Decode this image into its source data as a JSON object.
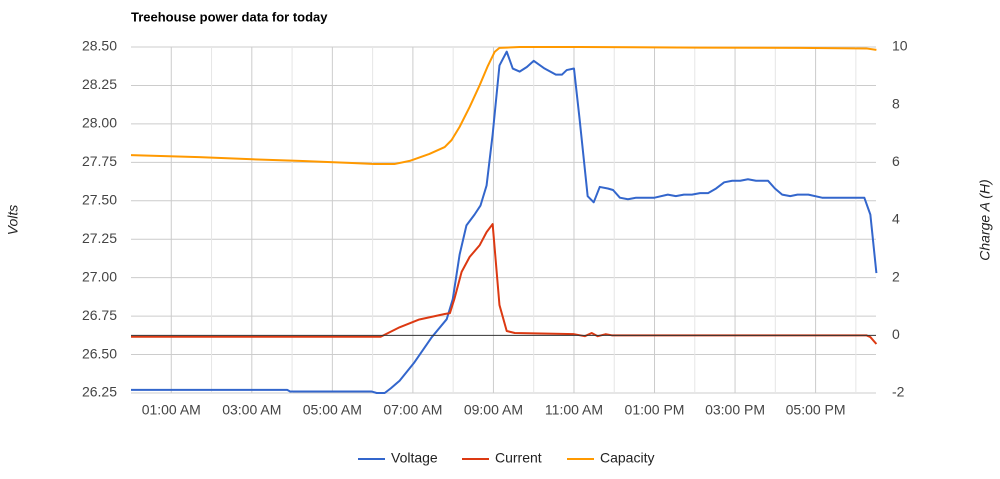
{
  "chart_data": {
    "type": "line",
    "title": "Treehouse power data for today",
    "y_label": "Volts",
    "y2_label": "Charge A (H)",
    "xlim": [
      0,
      18.5
    ],
    "xticks": [
      {
        "value": 1,
        "label": "01:00 AM"
      },
      {
        "value": 3,
        "label": "03:00 AM"
      },
      {
        "value": 5,
        "label": "05:00 AM"
      },
      {
        "value": 7,
        "label": "07:00 AM"
      },
      {
        "value": 9,
        "label": "09:00 AM"
      },
      {
        "value": 11,
        "label": "11:00 AM"
      },
      {
        "value": 13,
        "label": "01:00 PM"
      },
      {
        "value": 15,
        "label": "03:00 PM"
      },
      {
        "value": 17,
        "label": "05:00 PM"
      }
    ],
    "x_minor_ticks": [
      2,
      4,
      6,
      8,
      10,
      12,
      14,
      16,
      18
    ],
    "ylim": [
      26.25,
      28.5
    ],
    "yticks": [
      26.25,
      {
        "value": 26.5,
        "label": "26.50"
      },
      26.75,
      {
        "value": 27,
        "label": "27.00"
      },
      27.25,
      {
        "value": 27.5,
        "label": "27.50"
      },
      27.75,
      {
        "value": 28,
        "label": "28.00"
      },
      28.25,
      {
        "value": 28.5,
        "label": "28.50"
      }
    ],
    "y2lim": [
      -2,
      10
    ],
    "y2ticks": [
      -2,
      0,
      2,
      4,
      6,
      8,
      10
    ],
    "grid": true,
    "legend": "bottom",
    "series": [
      {
        "name": "Voltage",
        "color": "#3366cc",
        "axis": "y",
        "x": [
          0,
          3.88,
          3.95,
          5.97,
          6.1,
          6.3,
          6.45,
          6.67,
          7.04,
          7.46,
          7.84,
          7.99,
          8.16,
          8.33,
          8.53,
          8.68,
          8.83,
          8.98,
          9.15,
          9.33,
          9.48,
          9.65,
          9.83,
          10.0,
          10.27,
          10.55,
          10.7,
          10.82,
          11.0,
          11.14,
          11.34,
          11.49,
          11.64,
          11.84,
          11.97,
          12.14,
          12.34,
          12.54,
          13.0,
          13.33,
          13.53,
          13.73,
          13.93,
          14.13,
          14.33,
          14.53,
          14.73,
          14.93,
          15.13,
          15.32,
          15.52,
          15.82,
          15.99,
          16.17,
          16.37,
          16.55,
          16.82,
          17.16,
          18.21,
          18.36,
          18.51
        ],
        "values": [
          26.27,
          26.27,
          26.26,
          26.26,
          26.25,
          26.25,
          26.28,
          26.33,
          26.45,
          26.61,
          26.73,
          26.86,
          27.15,
          27.34,
          27.41,
          27.47,
          27.6,
          27.93,
          28.38,
          28.47,
          28.36,
          28.34,
          28.37,
          28.41,
          28.36,
          28.32,
          28.32,
          28.35,
          28.36,
          28.03,
          27.53,
          27.49,
          27.59,
          27.58,
          27.57,
          27.52,
          27.51,
          27.52,
          27.52,
          27.54,
          27.53,
          27.54,
          27.54,
          27.55,
          27.55,
          27.58,
          27.62,
          27.63,
          27.63,
          27.64,
          27.63,
          27.63,
          27.58,
          27.54,
          27.53,
          27.54,
          27.54,
          27.52,
          27.52,
          27.41,
          27.03
        ]
      },
      {
        "name": "Current",
        "color": "#dc3912",
        "axis": "y2",
        "x": [
          0,
          6.2,
          6.67,
          7.16,
          7.79,
          7.92,
          8.03,
          8.21,
          8.41,
          8.66,
          8.83,
          8.98,
          9.15,
          9.33,
          9.53,
          11.0,
          11.27,
          11.44,
          11.59,
          11.79,
          11.94,
          18.26,
          18.36,
          18.51
        ],
        "values": [
          -0.05,
          -0.05,
          0.28,
          0.55,
          0.74,
          0.77,
          1.26,
          2.2,
          2.72,
          3.13,
          3.58,
          3.86,
          1.05,
          0.15,
          0.08,
          0.04,
          -0.03,
          0.08,
          -0.03,
          0.04,
          0,
          0,
          -0.06,
          -0.3
        ]
      },
      {
        "name": "Capacity",
        "color": "#ff9900",
        "axis": "y2",
        "x": [
          0,
          1.69,
          2.94,
          4.18,
          5.42,
          6.04,
          6.54,
          6.92,
          7.41,
          7.79,
          7.96,
          8.16,
          8.41,
          8.66,
          8.86,
          9.03,
          9.15,
          9.65,
          11.14,
          14.13,
          16.62,
          18.26,
          18.51
        ],
        "values": [
          6.25,
          6.18,
          6.11,
          6.05,
          5.98,
          5.94,
          5.94,
          6.05,
          6.29,
          6.53,
          6.77,
          7.23,
          7.92,
          8.68,
          9.34,
          9.83,
          9.97,
          10,
          10,
          9.98,
          9.97,
          9.95,
          9.9
        ]
      }
    ]
  }
}
